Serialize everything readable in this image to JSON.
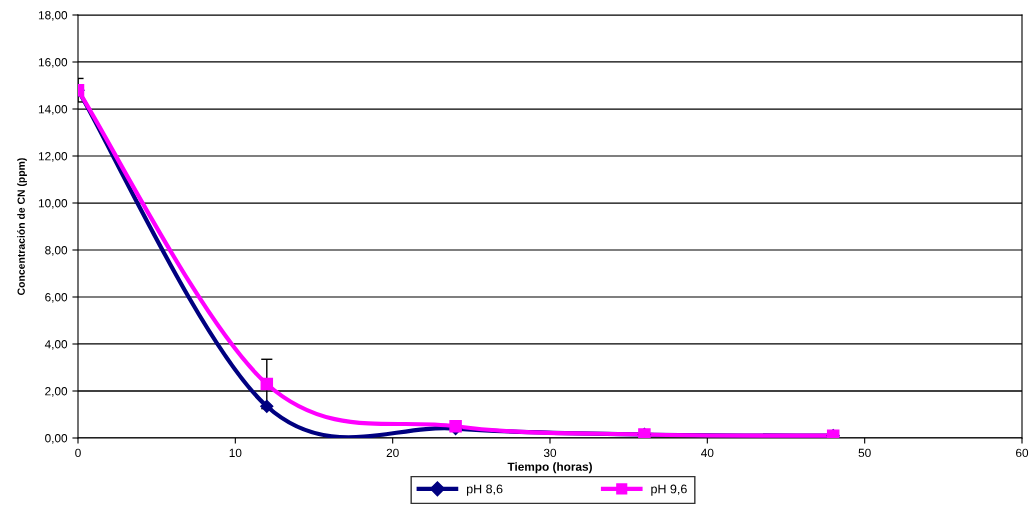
{
  "chart_data": {
    "type": "line",
    "xlabel": "Tiempo (horas)",
    "ylabel": "Concentración de CN (ppm)",
    "x": [
      0,
      12,
      24,
      36,
      48
    ],
    "series": [
      {
        "name": "pH 8,6",
        "color": "#000080",
        "marker": "diamond",
        "values": [
          14.8,
          1.35,
          0.4,
          0.15,
          0.1
        ],
        "errors": [
          0.5,
          null,
          null,
          null,
          null
        ]
      },
      {
        "name": "pH 9,6",
        "color": "#ff00ff",
        "marker": "square",
        "values": [
          14.8,
          2.3,
          0.5,
          0.15,
          0.1
        ],
        "errors": [
          null,
          1.05,
          null,
          null,
          null
        ]
      }
    ],
    "xlim": [
      0,
      60
    ],
    "xticks": [
      0,
      10,
      20,
      30,
      40,
      50,
      60
    ],
    "ylim": [
      0,
      18
    ],
    "yticks": [
      {
        "value": 0,
        "label": "0,00"
      },
      {
        "value": 2,
        "label": "2,00"
      },
      {
        "value": 4,
        "label": "4,00"
      },
      {
        "value": 6,
        "label": "6,00"
      },
      {
        "value": 8,
        "label": "8,00"
      },
      {
        "value": 10,
        "label": "10,00"
      },
      {
        "value": 12,
        "label": "12,00"
      },
      {
        "value": 14,
        "label": "14,00"
      },
      {
        "value": 16,
        "label": "16,00"
      },
      {
        "value": 18,
        "label": "18,00"
      }
    ],
    "grid": "y",
    "legend": "bottom",
    "line_style": "solid"
  }
}
